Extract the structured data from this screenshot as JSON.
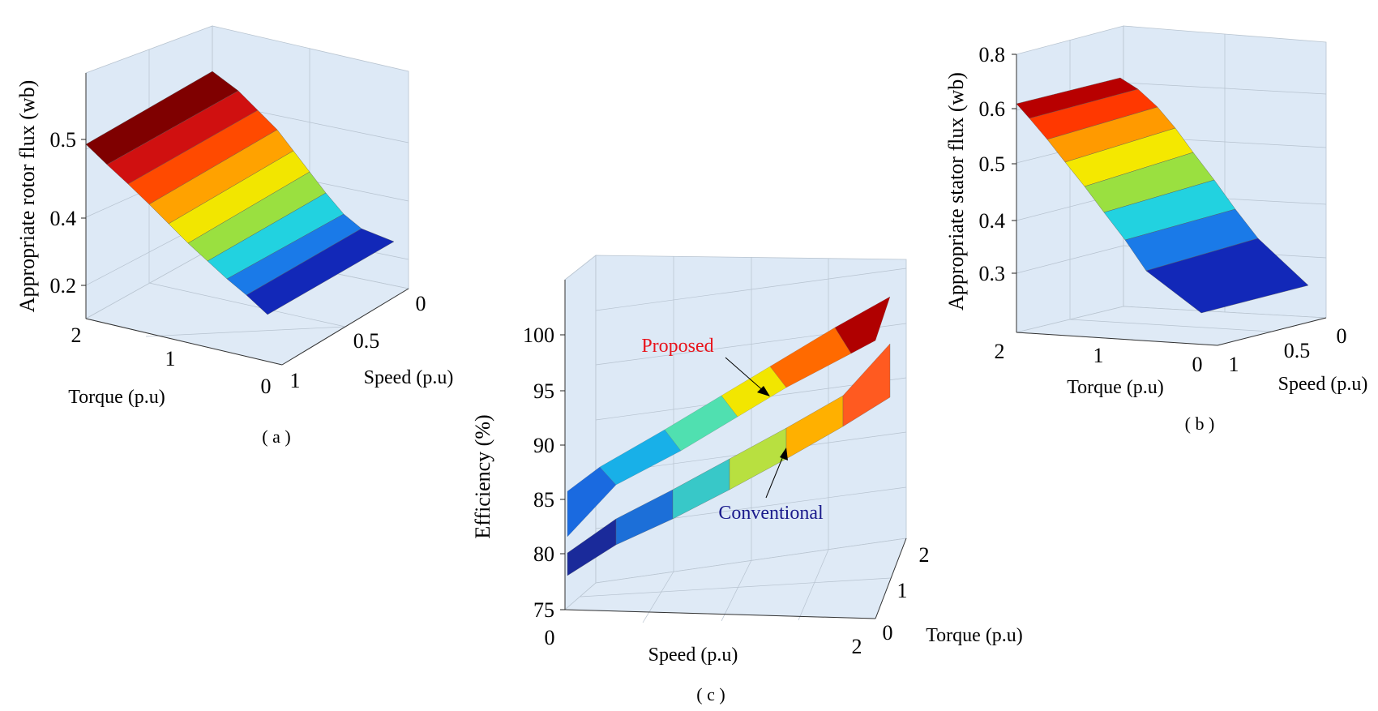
{
  "figure_labels": [
    "( a )",
    "( b )",
    "( c )"
  ],
  "chart_data": [
    {
      "id": "a",
      "type": "surface",
      "panel_label": "( a )",
      "zlabel": "Appropriate rotor flux (wb)",
      "xlabel": "Torque (p.u)",
      "ylabel": "Speed (p.u)",
      "xlim": [
        0,
        2
      ],
      "ylim": [
        0,
        1
      ],
      "zlim": [
        0.1,
        0.6
      ],
      "xticks": [
        "2",
        "1",
        "0"
      ],
      "yticks": [
        "0",
        "0.5",
        "1"
      ],
      "zticks": [
        "0.5",
        "0.4",
        "0.2"
      ],
      "surface": {
        "series": [
          {
            "speed": 0,
            "flux": 0.5
          },
          {
            "speed": 0.1,
            "flux": 0.5
          },
          {
            "speed": 0.2,
            "flux": 0.47
          },
          {
            "speed": 0.3,
            "flux": 0.44
          },
          {
            "speed": 0.4,
            "flux": 0.41
          },
          {
            "speed": 0.5,
            "flux": 0.38
          },
          {
            "speed": 0.6,
            "flux": 0.35
          },
          {
            "speed": 0.7,
            "flux": 0.31
          },
          {
            "speed": 0.8,
            "flux": 0.27
          },
          {
            "speed": 0.9,
            "flux": 0.24
          },
          {
            "speed": 1.0,
            "flux": 0.21
          }
        ],
        "colormap": "jet"
      }
    },
    {
      "id": "b",
      "type": "surface",
      "panel_label": "( b )",
      "zlabel": "Appropriate stator flux (wb)",
      "xlabel": "Torque (p.u)",
      "ylabel": "Speed (p.u)",
      "xlim": [
        0,
        2
      ],
      "ylim": [
        0,
        1
      ],
      "zlim": [
        0.2,
        0.8
      ],
      "xticks": [
        "2",
        "1",
        "0"
      ],
      "yticks": [
        "0",
        "0.5",
        "1"
      ],
      "zticks": [
        "0.8",
        "0.6",
        "0.5",
        "0.4",
        "0.3"
      ],
      "surface": {
        "series": [
          {
            "speed": 0,
            "flux": 0.62
          },
          {
            "speed": 0.1,
            "flux": 0.62
          },
          {
            "speed": 0.2,
            "flux": 0.58
          },
          {
            "speed": 0.3,
            "flux": 0.54
          },
          {
            "speed": 0.4,
            "flux": 0.5
          },
          {
            "speed": 0.5,
            "flux": 0.46
          },
          {
            "speed": 0.6,
            "flux": 0.42
          },
          {
            "speed": 0.7,
            "flux": 0.38
          },
          {
            "speed": 0.8,
            "flux": 0.34
          },
          {
            "speed": 0.9,
            "flux": 0.3
          },
          {
            "speed": 1.0,
            "flux": 0.27
          }
        ],
        "colormap": "jet"
      }
    },
    {
      "id": "c",
      "type": "surface",
      "panel_label": "( c )",
      "zlabel": "Efficiency (%)",
      "xlabel": "Speed (p.u)",
      "ylabel": "Torque (p.u)",
      "xlim": [
        0,
        2
      ],
      "ylim": [
        0,
        2
      ],
      "zlim": [
        75,
        100
      ],
      "xticks": [
        "0",
        "2"
      ],
      "yticks": [
        "0",
        "1",
        "2"
      ],
      "zticks": [
        "100",
        "95",
        "90",
        "85",
        "80",
        "75"
      ],
      "series": [
        {
          "name": "Proposed",
          "speed": [
            0,
            2
          ],
          "efficiency": [
            81,
            100
          ],
          "label_color": "#e8141c"
        },
        {
          "name": "Conventional",
          "speed": [
            0,
            2
          ],
          "efficiency": [
            77.5,
            97
          ],
          "label_color": "#1a1a8c"
        }
      ],
      "annotations": [
        "Proposed",
        "Conventional"
      ]
    }
  ]
}
